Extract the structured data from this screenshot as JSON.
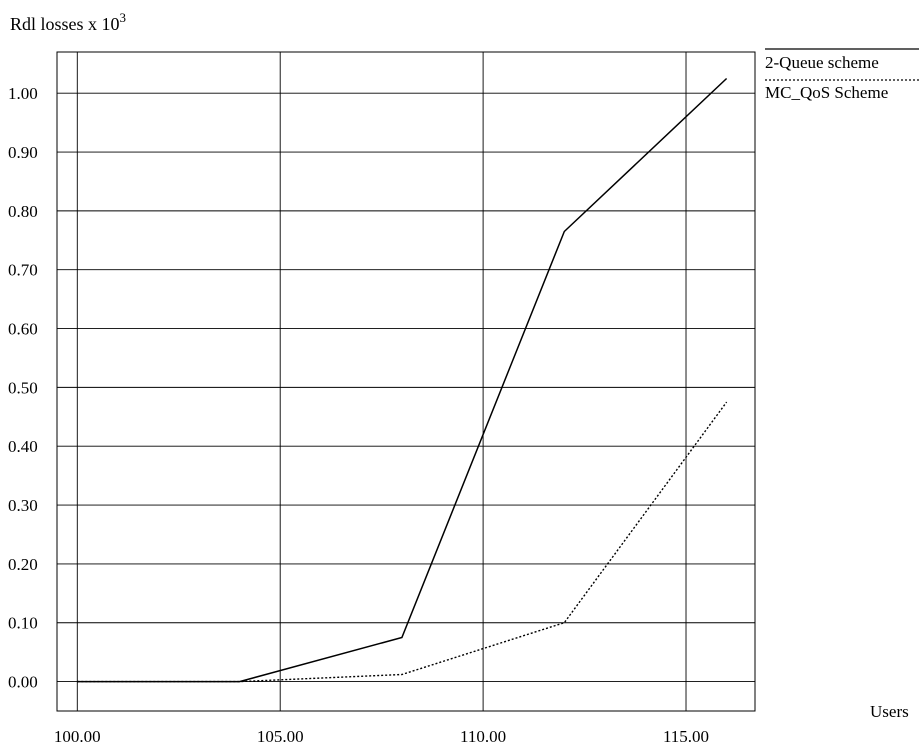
{
  "chart_data": {
    "type": "line",
    "title": "",
    "ylabel_text": "Rdl losses x 10",
    "ylabel_exponent": "3",
    "xlabel": "Users",
    "xlim": [
      99.5,
      116.7
    ],
    "ylim": [
      -0.05,
      1.07
    ],
    "x_ticks": [
      100.0,
      105.0,
      110.0,
      115.0
    ],
    "x_tick_labels": [
      "100.00",
      "105.00",
      "110.00",
      "115.00"
    ],
    "y_ticks": [
      0.0,
      0.1,
      0.2,
      0.3,
      0.4,
      0.5,
      0.6,
      0.7,
      0.8,
      0.9,
      1.0
    ],
    "y_tick_labels": [
      "0.00",
      "0.10",
      "0.20",
      "0.30",
      "0.40",
      "0.50",
      "0.60",
      "0.70",
      "0.80",
      "0.90",
      "1.00"
    ],
    "grid": true,
    "legend_position": "top-right outside",
    "series": [
      {
        "name": "2-Queue scheme",
        "style": "solid",
        "color": "#000000",
        "x": [
          100,
          104,
          108,
          112,
          116
        ],
        "y": [
          0.0,
          0.0,
          0.075,
          0.765,
          1.025
        ]
      },
      {
        "name": "MC_QoS Scheme",
        "style": "dotted",
        "color": "#000000",
        "x": [
          100,
          104,
          108,
          112,
          116
        ],
        "y": [
          0.0,
          0.0,
          0.012,
          0.1,
          0.475
        ]
      }
    ]
  }
}
